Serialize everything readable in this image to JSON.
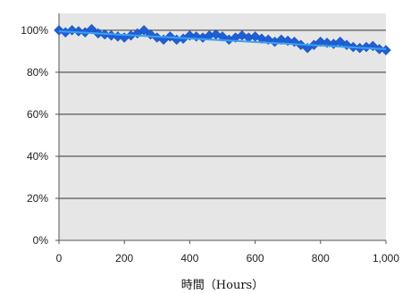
{
  "chart_data": {
    "type": "scatter",
    "title": "",
    "xlabel": "時間（Hours）",
    "ylabel": "",
    "xlim": [
      0,
      1000
    ],
    "ylim": [
      0,
      1.08
    ],
    "x_ticks": [
      0,
      200,
      400,
      600,
      800,
      1000
    ],
    "x_tick_labels": [
      "0",
      "200",
      "400",
      "600",
      "800",
      "1,000"
    ],
    "y_ticks": [
      0,
      0.2,
      0.4,
      0.6,
      0.8,
      1.0
    ],
    "y_tick_labels": [
      "0%",
      "20%",
      "40%",
      "60%",
      "80%",
      "100%"
    ],
    "grid": "horizontal",
    "legend": "none",
    "colors": {
      "plot_background": "#e6e6e6",
      "gridline": "#333333",
      "marker": "#1f5fd6",
      "trendline": "#3aa0f0"
    },
    "series": [
      {
        "marker": "diamond",
        "x": [
          0,
          20,
          40,
          60,
          80,
          100,
          120,
          140,
          160,
          180,
          200,
          220,
          240,
          260,
          280,
          300,
          320,
          340,
          360,
          380,
          400,
          420,
          440,
          460,
          480,
          500,
          520,
          540,
          560,
          580,
          600,
          620,
          640,
          660,
          680,
          700,
          720,
          740,
          760,
          780,
          800,
          820,
          840,
          860,
          880,
          900,
          920,
          940,
          960,
          980,
          1000
        ],
        "y": [
          1.0,
          0.99,
          1.0,
          0.995,
          0.99,
          1.005,
          0.985,
          0.98,
          0.975,
          0.97,
          0.965,
          0.975,
          0.985,
          1.0,
          0.98,
          0.965,
          0.955,
          0.97,
          0.955,
          0.96,
          0.975,
          0.97,
          0.965,
          0.975,
          0.98,
          0.97,
          0.955,
          0.965,
          0.975,
          0.965,
          0.97,
          0.96,
          0.955,
          0.945,
          0.955,
          0.95,
          0.945,
          0.93,
          0.915,
          0.93,
          0.945,
          0.94,
          0.935,
          0.945,
          0.93,
          0.92,
          0.915,
          0.92,
          0.925,
          0.91,
          0.905
        ]
      }
    ],
    "trendline": {
      "x": [
        0,
        1000
      ],
      "y": [
        0.995,
        0.91
      ]
    }
  }
}
